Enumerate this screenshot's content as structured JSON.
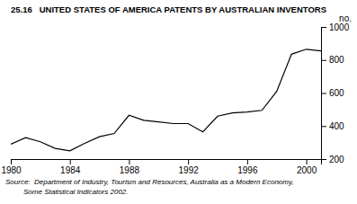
{
  "chart_data": {
    "type": "line",
    "title": "25.16   UNITED STATES OF AMERICA PATENTS BY AUSTRALIAN INVENTORS",
    "ylabel": "no.",
    "annotations": [
      "Source:  Department of Industry, Tourism and Resources, Australia as a Modern Economy,",
      "         Some Statistical Indicators 2002."
    ],
    "x": [
      1980,
      1981,
      1982,
      1983,
      1984,
      1985,
      1986,
      1987,
      1988,
      1989,
      1990,
      1991,
      1992,
      1993,
      1994,
      1995,
      1996,
      1997,
      1998,
      1999,
      2000,
      2001
    ],
    "values": [
      290,
      330,
      305,
      265,
      250,
      295,
      335,
      355,
      465,
      435,
      425,
      415,
      415,
      365,
      460,
      480,
      485,
      495,
      610,
      835,
      865,
      855
    ],
    "color": "#000000",
    "xlim": [
      1980,
      2001
    ],
    "ylim": [
      200,
      1000
    ],
    "xticks": [
      1980,
      1984,
      1988,
      1992,
      1996,
      2000
    ],
    "yticks": [
      200,
      400,
      600,
      800,
      1000
    ],
    "grid": false
  }
}
